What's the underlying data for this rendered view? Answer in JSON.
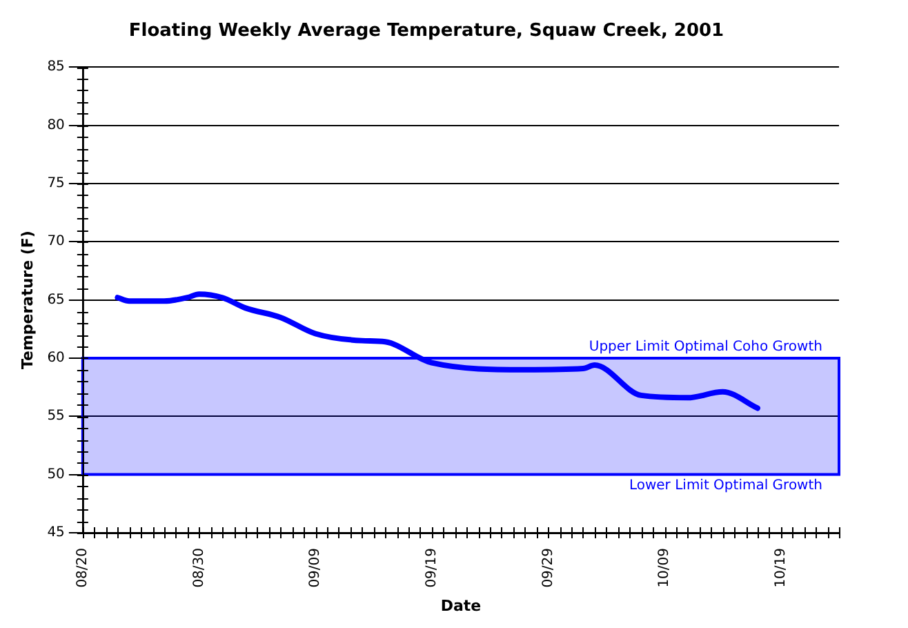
{
  "chart_data": {
    "type": "line",
    "title": "Floating Weekly Average Temperature, Squaw Creek, 2001",
    "xlabel": "Date",
    "ylabel": "Temperature (F)",
    "series": [
      {
        "color": "#0000ff",
        "x": [
          "2001-08-23",
          "2001-08-24",
          "2001-08-27",
          "2001-08-29",
          "2001-08-30",
          "2001-09-01",
          "2001-09-03",
          "2001-09-06",
          "2001-09-09",
          "2001-09-13",
          "2001-09-15",
          "2001-09-19",
          "2001-09-27",
          "2001-10-02",
          "2001-10-03",
          "2001-10-07",
          "2001-10-11",
          "2001-10-14",
          "2001-10-17"
        ],
        "values": [
          65.2,
          64.9,
          64.9,
          65.2,
          65.5,
          65.2,
          64.3,
          63.5,
          62.1,
          61.5,
          61.4,
          59.6,
          59.0,
          59.1,
          59.4,
          56.8,
          56.6,
          57.1,
          55.7
        ]
      }
    ],
    "xlim": [
      "2001-08-20",
      "2001-10-24"
    ],
    "xticks": [
      {
        "value": "2001-08-20",
        "label": "08/20"
      },
      {
        "value": "2001-08-25",
        "label": null
      },
      {
        "value": "2001-08-30",
        "label": "08/30"
      },
      {
        "value": "2001-09-04",
        "label": null
      },
      {
        "value": "2001-09-09",
        "label": "09/09"
      },
      {
        "value": "2001-09-14",
        "label": null
      },
      {
        "value": "2001-09-19",
        "label": "09/19"
      },
      {
        "value": "2001-09-24",
        "label": null
      },
      {
        "value": "2001-09-29",
        "label": "09/29"
      },
      {
        "value": "2001-10-04",
        "label": null
      },
      {
        "value": "2001-10-09",
        "label": "10/09"
      },
      {
        "value": "2001-10-14",
        "label": null
      },
      {
        "value": "2001-10-19",
        "label": "10/19"
      },
      {
        "value": "2001-10-24",
        "label": null
      }
    ],
    "ylim": [
      45,
      85
    ],
    "yticks": [
      45,
      50,
      55,
      60,
      65,
      70,
      75,
      80,
      85
    ],
    "grid": "y",
    "legend": false,
    "marker": "none",
    "line_style": "solid",
    "bands": [
      {
        "axis": "y",
        "from": 50,
        "to": 60,
        "color": "#0000ff"
      }
    ],
    "annotations": [
      {
        "text": "Upper Limit Optimal Coho Growth",
        "y": 60
      },
      {
        "text": "Lower Limit Optimal Growth",
        "y": 50
      }
    ]
  }
}
